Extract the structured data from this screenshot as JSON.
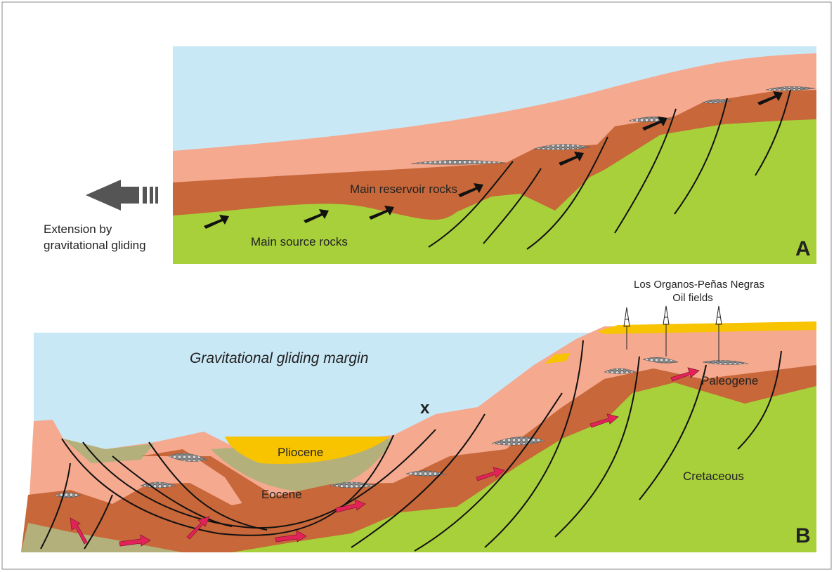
{
  "panel_a": {
    "label": "A",
    "arrow_label": [
      "Extension by",
      "gravitational gliding"
    ],
    "layers": [
      "Main reservoir rocks",
      "Main source rocks"
    ]
  },
  "panel_b": {
    "label": "B",
    "title": "Gravitational gliding margin",
    "marker": "x",
    "oil_field": [
      "Los Organos-Peñas Negras",
      "Oil fields"
    ],
    "units": [
      "Pliocene",
      "Eocene",
      "Paleogene",
      "Cretaceous"
    ]
  }
}
